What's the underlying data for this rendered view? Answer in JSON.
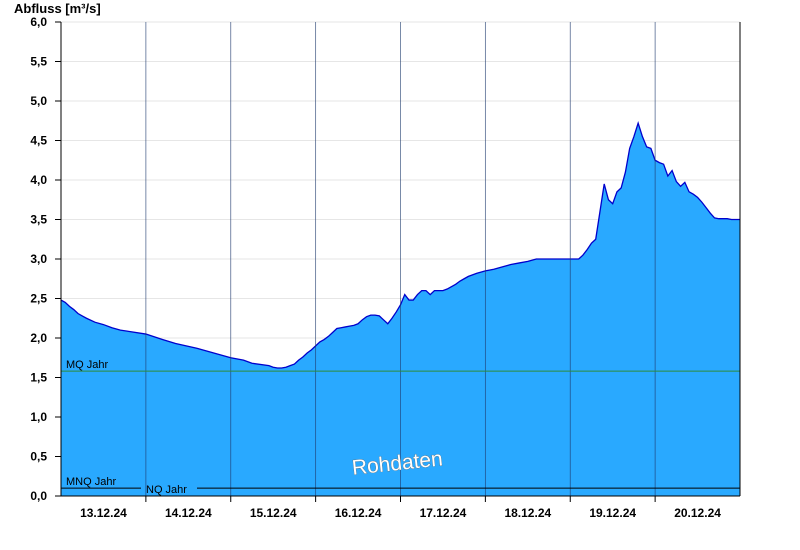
{
  "chart_data": {
    "type": "area",
    "ylabel": "Abfluss [m³/s]",
    "ylim": [
      0,
      6.0
    ],
    "y_ticks": [
      "0,0",
      "0,5",
      "1,0",
      "1,5",
      "2,0",
      "2,5",
      "3,0",
      "3,5",
      "4,0",
      "4,5",
      "5,0",
      "5,5",
      "6,0"
    ],
    "xlim": [
      0,
      8
    ],
    "x_tick_labels": [
      "13.12.24",
      "14.12.24",
      "15.12.24",
      "16.12.24",
      "17.12.24",
      "18.12.24",
      "19.12.24",
      "20.12.24"
    ],
    "watermark": "Rohdaten",
    "fill_color": "#29a9ff",
    "line_color": "#0000cc",
    "reference_lines": [
      {
        "name": "MQ Jahr",
        "value": 1.58,
        "color": "#2e8b3a"
      },
      {
        "name": "MNQ Jahr",
        "value": 0.1,
        "color": "#000000"
      },
      {
        "name": "NQ Jahr",
        "value": 0.1,
        "color": "#000000"
      }
    ],
    "series": [
      {
        "x": [
          0,
          0.05,
          0.1,
          0.15,
          0.2,
          0.25,
          0.3,
          0.4,
          0.5,
          0.6,
          0.7,
          1.0,
          1.2,
          1.35,
          1.6,
          1.8,
          2.0,
          2.15,
          2.25,
          2.45,
          2.5,
          2.55,
          2.6,
          2.65,
          2.7,
          2.75,
          2.8,
          2.85,
          2.9,
          2.95,
          3.0,
          3.05,
          3.1,
          3.15,
          3.2,
          3.25,
          3.3,
          3.35,
          3.4,
          3.45,
          3.5,
          3.55,
          3.6,
          3.65,
          3.7,
          3.75,
          3.8,
          3.85,
          3.9,
          3.95,
          4.0,
          4.05,
          4.1,
          4.15,
          4.2,
          4.25,
          4.3,
          4.35,
          4.4,
          4.45,
          4.5,
          4.55,
          4.6,
          4.65,
          4.7,
          4.75,
          4.8,
          4.9,
          5.0,
          5.1,
          5.2,
          5.3,
          5.4,
          5.5,
          5.6,
          5.7,
          5.8,
          5.9,
          6.0,
          6.1,
          6.15,
          6.2,
          6.25,
          6.3,
          6.35,
          6.4,
          6.45,
          6.5,
          6.55,
          6.6,
          6.65,
          6.7,
          6.75,
          6.8,
          6.85,
          6.9,
          6.95,
          7.0,
          7.05,
          7.1,
          7.15,
          7.2,
          7.25,
          7.3,
          7.35,
          7.4,
          7.45,
          7.5,
          7.55,
          7.6,
          7.65,
          7.7,
          7.75,
          7.8,
          7.85,
          7.9,
          7.95,
          8.0
        ],
        "y": [
          2.48,
          2.45,
          2.4,
          2.36,
          2.31,
          2.28,
          2.25,
          2.2,
          2.17,
          2.13,
          2.1,
          2.05,
          1.98,
          1.93,
          1.87,
          1.81,
          1.75,
          1.72,
          1.68,
          1.65,
          1.63,
          1.62,
          1.62,
          1.63,
          1.65,
          1.67,
          1.72,
          1.76,
          1.81,
          1.85,
          1.9,
          1.95,
          1.98,
          2.02,
          2.07,
          2.12,
          2.13,
          2.14,
          2.15,
          2.16,
          2.18,
          2.23,
          2.27,
          2.29,
          2.29,
          2.28,
          2.23,
          2.18,
          2.25,
          2.33,
          2.42,
          2.55,
          2.48,
          2.48,
          2.55,
          2.6,
          2.6,
          2.55,
          2.6,
          2.6,
          2.6,
          2.62,
          2.65,
          2.68,
          2.72,
          2.75,
          2.78,
          2.82,
          2.85,
          2.87,
          2.9,
          2.93,
          2.95,
          2.97,
          3.0,
          3.0,
          3.0,
          3.0,
          3.0,
          3.0,
          3.05,
          3.12,
          3.2,
          3.25,
          3.6,
          3.95,
          3.75,
          3.7,
          3.85,
          3.9,
          4.1,
          4.4,
          4.55,
          4.72,
          4.55,
          4.42,
          4.4,
          4.25,
          4.22,
          4.2,
          4.05,
          4.12,
          3.98,
          3.92,
          3.97,
          3.85,
          3.82,
          3.78,
          3.72,
          3.65,
          3.58,
          3.52,
          3.51,
          3.51,
          3.51,
          3.5,
          3.5,
          3.5
        ]
      }
    ]
  }
}
